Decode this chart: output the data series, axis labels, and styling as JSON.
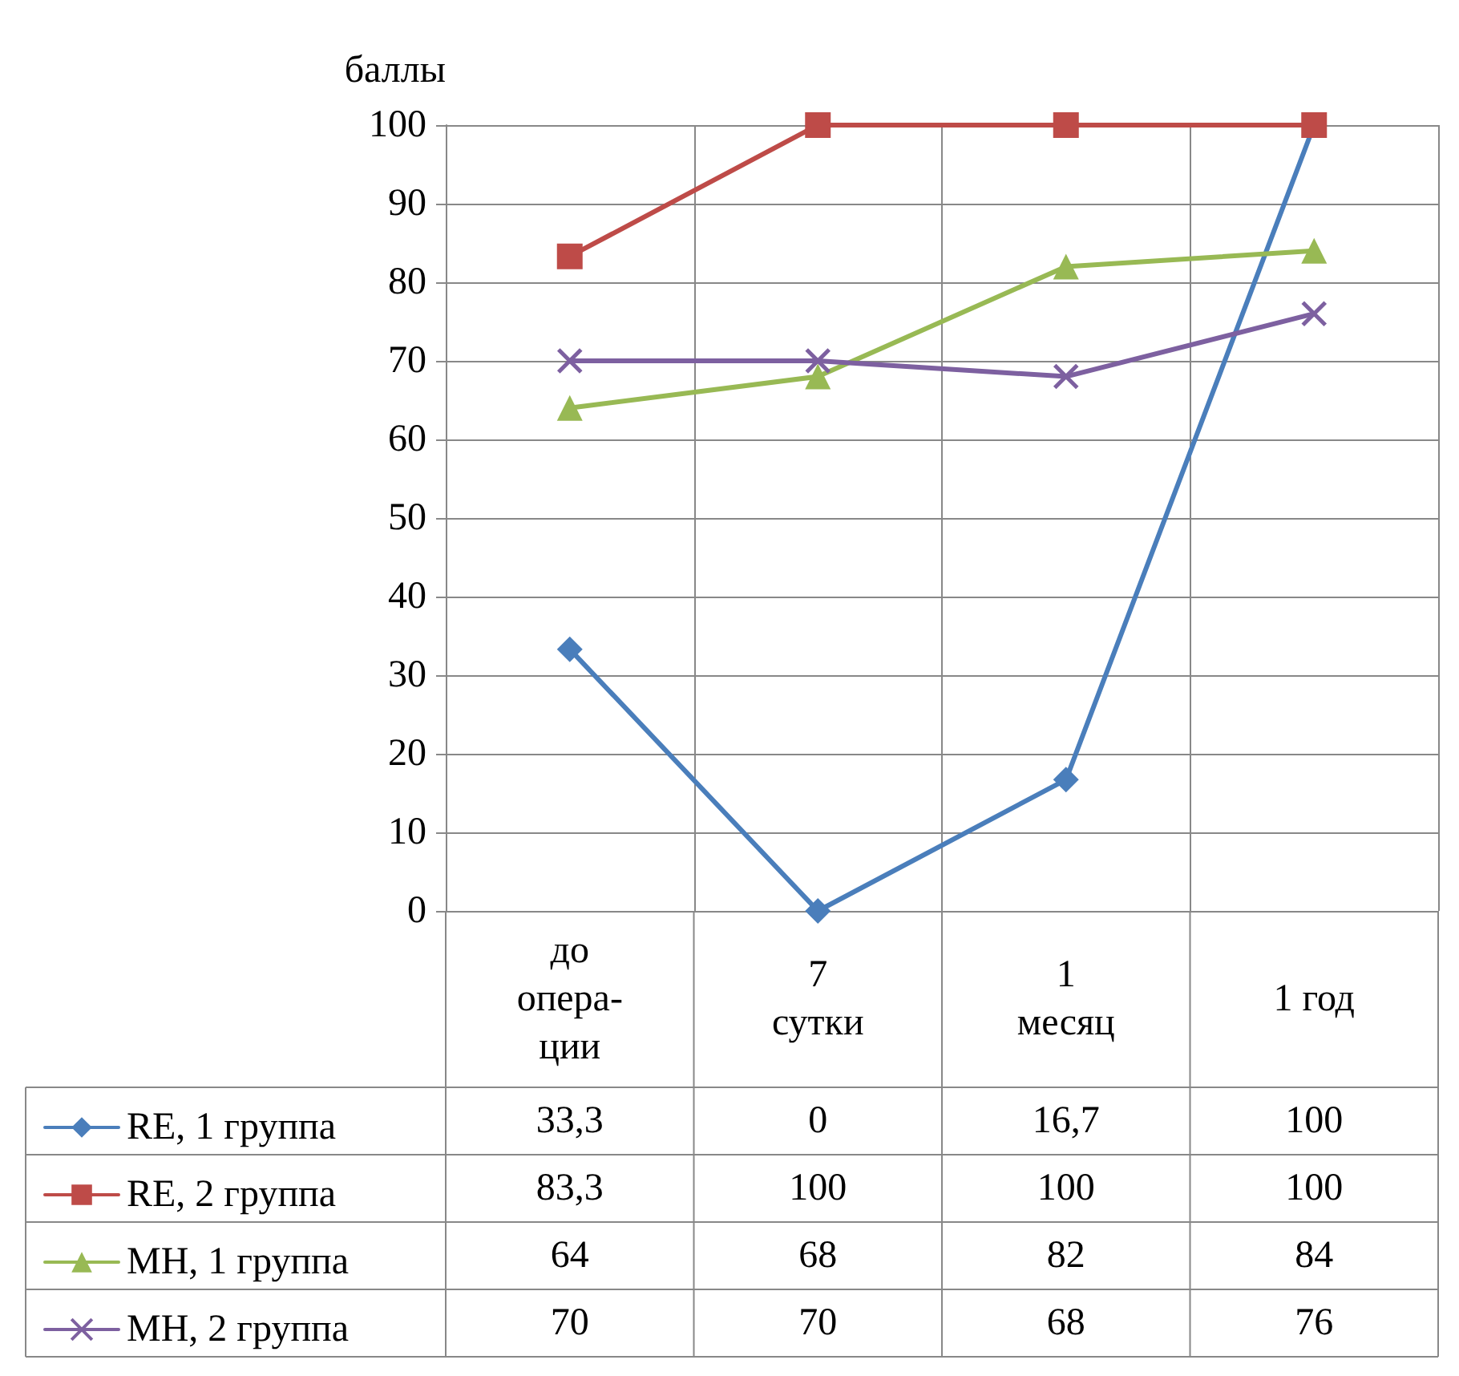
{
  "chart_data": {
    "type": "line",
    "ylabel": "баллы",
    "categories": [
      "до опера-ции",
      "7 сутки",
      "1 месяц",
      "1 год"
    ],
    "ylim": [
      0,
      100
    ],
    "yticks": [
      0,
      10,
      20,
      30,
      40,
      50,
      60,
      70,
      80,
      90,
      100
    ],
    "grid": true,
    "legend": "bottom",
    "data_labels": true,
    "line_style": "solid",
    "series": [
      {
        "name": "RE, 1 группа",
        "color": "#4a7ebb",
        "marker": "diamond",
        "values": [
          33.3,
          0,
          16.7,
          100
        ],
        "value_labels": [
          "33,3",
          "0",
          "16,7",
          "100"
        ]
      },
      {
        "name": "RE, 2 группа",
        "color": "#be4b48",
        "marker": "square",
        "values": [
          83.3,
          100,
          100,
          100
        ],
        "value_labels": [
          "83,3",
          "100",
          "100",
          "100"
        ]
      },
      {
        "name": "MH, 1 группа",
        "color": "#98b954",
        "marker": "triangle",
        "values": [
          64,
          68,
          82,
          84
        ],
        "value_labels": [
          "64",
          "68",
          "82",
          "84"
        ]
      },
      {
        "name": "MH, 2 группа",
        "color": "#7d60a0",
        "marker": "cross",
        "values": [
          70,
          70,
          68,
          76
        ],
        "value_labels": [
          "70",
          "70",
          "68",
          "76"
        ]
      }
    ]
  }
}
